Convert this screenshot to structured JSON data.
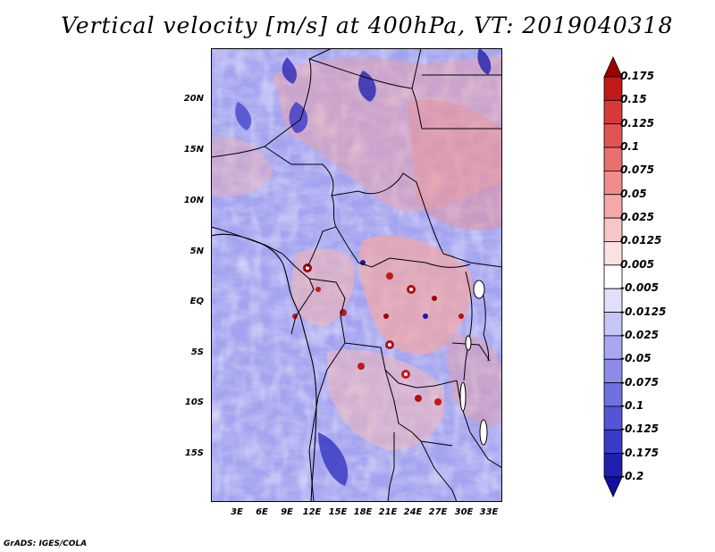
{
  "map": {
    "title": "Vertical velocity [m/s] at 400hPa, VT: 2019040318",
    "variable": "Vertical velocity",
    "units": "m/s",
    "level": "400hPa",
    "valid_time": "2019040318",
    "region": "Central Africa",
    "lat_labels": [
      "20N",
      "15N",
      "10N",
      "5N",
      "EQ",
      "5S",
      "10S",
      "15S"
    ],
    "lon_labels": [
      "3E",
      "6E",
      "9E",
      "12E",
      "15E",
      "18E",
      "21E",
      "24E",
      "27E",
      "30E",
      "33E"
    ],
    "credit": "GrADS: IGES/COLA"
  },
  "colorbar": {
    "levels": [
      "0.175",
      "0.15",
      "0.125",
      "0.1",
      "0.075",
      "0.05",
      "0.025",
      "0.0125",
      "0.005",
      "-0.005",
      "-0.0125",
      "-0.025",
      "-0.05",
      "-0.075",
      "-0.1",
      "-0.125",
      "-0.175",
      "-0.2"
    ],
    "colors": [
      "#a00000",
      "#c21a1a",
      "#d83a3a",
      "#e25454",
      "#ea7070",
      "#f08c8c",
      "#f4a8a8",
      "#f8c6c6",
      "#fbe2e2",
      "#ffffff",
      "#e0e0fa",
      "#c6c6f6",
      "#a8a8f0",
      "#8c8ce8",
      "#7070e0",
      "#5454d6",
      "#3a3ac8",
      "#2020b0",
      "#1010a0"
    ]
  },
  "palette": {
    "background_field": "#9b9bee",
    "boundaries": "#000000"
  }
}
